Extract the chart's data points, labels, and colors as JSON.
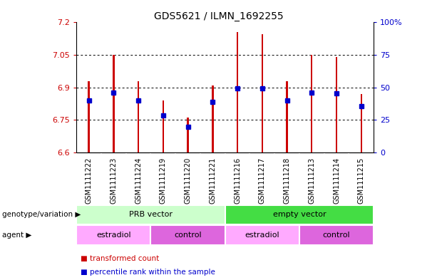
{
  "title": "GDS5621 / ILMN_1692255",
  "samples": [
    "GSM1111222",
    "GSM1111223",
    "GSM1111224",
    "GSM1111219",
    "GSM1111220",
    "GSM1111221",
    "GSM1111216",
    "GSM1111217",
    "GSM1111218",
    "GSM1111213",
    "GSM1111214",
    "GSM1111215"
  ],
  "bar_top": [
    6.93,
    7.05,
    6.93,
    6.84,
    6.76,
    6.91,
    7.155,
    7.145,
    6.93,
    7.05,
    7.04,
    6.87
  ],
  "bar_bottom": 6.6,
  "blue_marker": [
    6.84,
    6.875,
    6.84,
    6.77,
    6.72,
    6.835,
    6.895,
    6.895,
    6.84,
    6.875,
    6.872,
    6.815
  ],
  "ylim_left": [
    6.6,
    7.2
  ],
  "ylim_right": [
    0,
    100
  ],
  "yticks_left": [
    6.6,
    6.75,
    6.9,
    7.05,
    7.2
  ],
  "yticks_right": [
    0,
    25,
    50,
    75,
    100
  ],
  "ytick_labels_left": [
    "6.6",
    "6.75",
    "6.9",
    "7.05",
    "7.2"
  ],
  "ytick_labels_right": [
    "0",
    "25",
    "50",
    "75",
    "100%"
  ],
  "bar_color": "#cc0000",
  "blue_color": "#0000cc",
  "sample_bg": "#c8c8c8",
  "plot_bg": "#ffffff",
  "groups": [
    {
      "label": "PRB vector",
      "start": 0,
      "end": 6,
      "color": "#ccffcc"
    },
    {
      "label": "empty vector",
      "start": 6,
      "end": 12,
      "color": "#44dd44"
    }
  ],
  "agents": [
    {
      "label": "estradiol",
      "start": 0,
      "end": 3,
      "color": "#ffaaff"
    },
    {
      "label": "control",
      "start": 3,
      "end": 6,
      "color": "#dd66dd"
    },
    {
      "label": "estradiol",
      "start": 6,
      "end": 9,
      "color": "#ffaaff"
    },
    {
      "label": "control",
      "start": 9,
      "end": 12,
      "color": "#dd66dd"
    }
  ],
  "legend_items": [
    {
      "label": "transformed count",
      "color": "#cc0000"
    },
    {
      "label": "percentile rank within the sample",
      "color": "#0000cc"
    }
  ],
  "genotype_label": "genotype/variation",
  "agent_label": "agent",
  "bar_width": 0.07
}
